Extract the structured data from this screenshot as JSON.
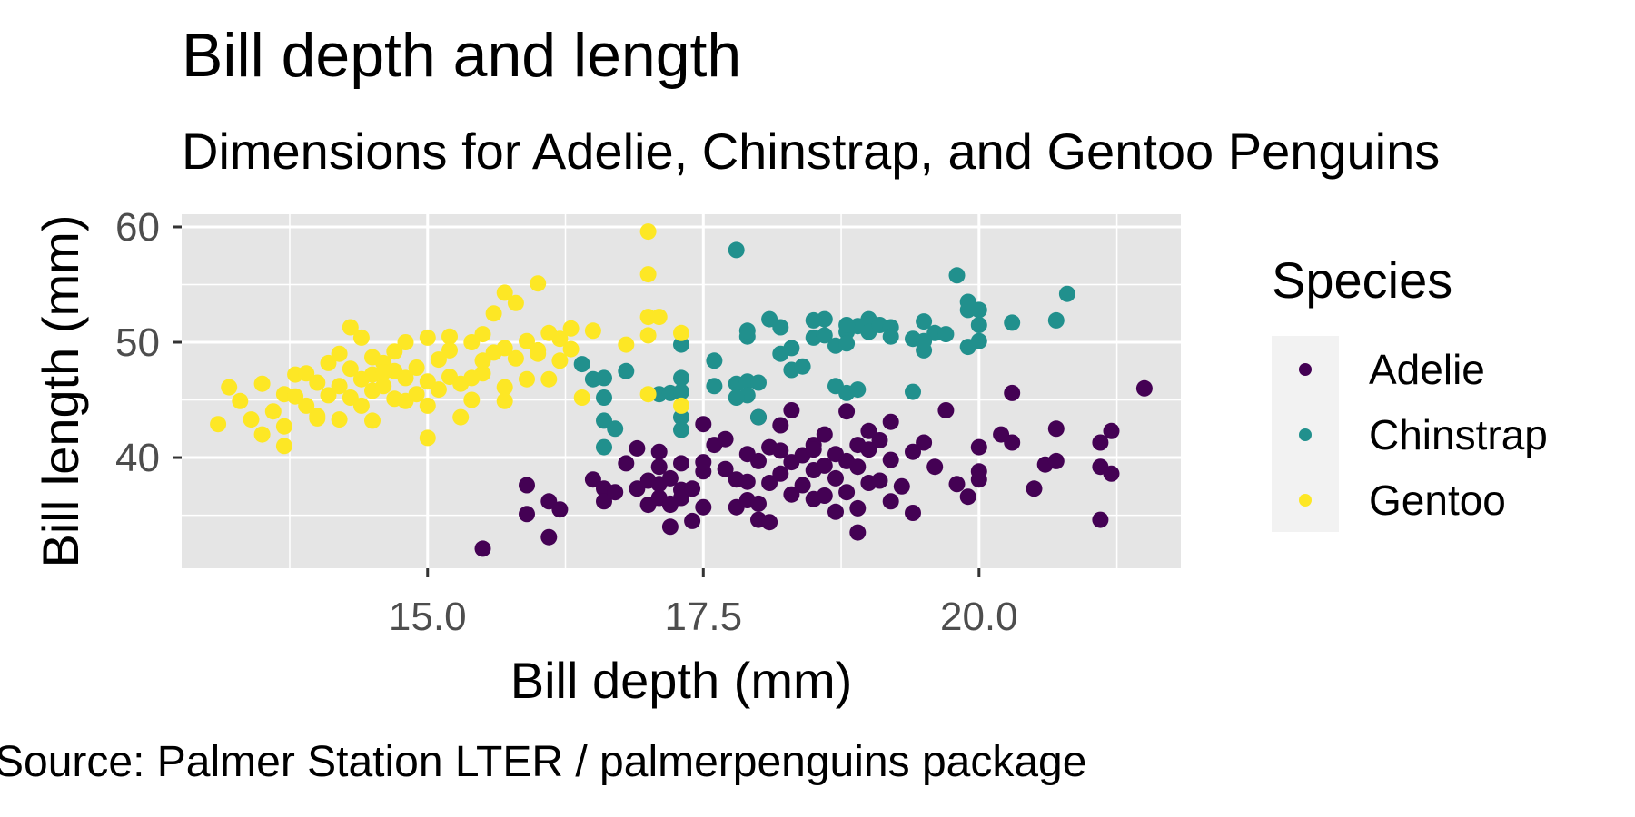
{
  "chart_data": {
    "type": "scatter",
    "title": "Bill depth and length",
    "subtitle": "Dimensions for Adelie, Chinstrap, and Gentoo Penguins",
    "caption": "Source: Palmer Station LTER / palmerpenguins package",
    "xlabel": "Bill depth (mm)",
    "ylabel": "Bill length (mm)",
    "xlim": [
      12.77,
      21.83
    ],
    "ylim": [
      30.4,
      61.1
    ],
    "xticks": [
      15.0,
      17.5,
      20.0
    ],
    "xtick_labels": [
      "15.0",
      "17.5",
      "20.0"
    ],
    "yticks": [
      40,
      50,
      60
    ],
    "ytick_labels": [
      "40",
      "50",
      "60"
    ],
    "grid": true,
    "legend": {
      "title": "Species",
      "position": "right"
    },
    "series": [
      {
        "name": "Adelie",
        "color": "#440154",
        "points": [
          [
            15.5,
            32.1
          ],
          [
            15.9,
            37.6
          ],
          [
            15.9,
            35.1
          ],
          [
            16.1,
            36.2
          ],
          [
            16.1,
            33.1
          ],
          [
            16.2,
            35.5
          ],
          [
            16.5,
            38.1
          ],
          [
            16.6,
            37.3
          ],
          [
            16.6,
            36.2
          ],
          [
            16.7,
            37.0
          ],
          [
            16.8,
            39.5
          ],
          [
            16.9,
            40.8
          ],
          [
            16.9,
            37.3
          ],
          [
            17.0,
            35.9
          ],
          [
            17.0,
            38.0
          ],
          [
            17.1,
            39.2
          ],
          [
            17.1,
            37.7
          ],
          [
            17.1,
            36.5
          ],
          [
            17.1,
            40.5
          ],
          [
            17.2,
            34.0
          ],
          [
            17.2,
            38.2
          ],
          [
            17.2,
            36.0
          ],
          [
            17.3,
            37.2
          ],
          [
            17.3,
            39.5
          ],
          [
            17.3,
            36.5
          ],
          [
            17.4,
            34.5
          ],
          [
            17.5,
            38.8
          ],
          [
            17.5,
            35.7
          ],
          [
            17.5,
            39.6
          ],
          [
            17.6,
            41.1
          ],
          [
            17.7,
            39.0
          ],
          [
            17.8,
            38.1
          ],
          [
            17.8,
            35.7
          ],
          [
            17.9,
            36.3
          ],
          [
            17.9,
            37.9
          ],
          [
            17.9,
            40.3
          ],
          [
            18.0,
            36.0
          ],
          [
            18.0,
            39.7
          ],
          [
            18.0,
            34.6
          ],
          [
            18.1,
            37.8
          ],
          [
            18.1,
            40.9
          ],
          [
            18.1,
            34.4
          ],
          [
            18.2,
            40.6
          ],
          [
            18.2,
            38.6
          ],
          [
            18.3,
            39.6
          ],
          [
            18.3,
            36.8
          ],
          [
            18.4,
            37.6
          ],
          [
            18.4,
            40.2
          ],
          [
            18.5,
            36.4
          ],
          [
            18.5,
            41.1
          ],
          [
            18.5,
            38.9
          ],
          [
            18.6,
            42.0
          ],
          [
            18.6,
            36.7
          ],
          [
            18.6,
            39.3
          ],
          [
            18.7,
            35.3
          ],
          [
            18.7,
            40.3
          ],
          [
            18.7,
            38.2
          ],
          [
            18.8,
            39.7
          ],
          [
            18.8,
            37.0
          ],
          [
            18.9,
            41.1
          ],
          [
            18.9,
            35.6
          ],
          [
            18.9,
            39.2
          ],
          [
            18.9,
            33.5
          ],
          [
            19.0,
            37.8
          ],
          [
            19.0,
            40.7
          ],
          [
            19.1,
            38.0
          ],
          [
            19.1,
            41.5
          ],
          [
            19.2,
            36.2
          ],
          [
            19.2,
            39.8
          ],
          [
            19.2,
            43.1
          ],
          [
            19.3,
            37.5
          ],
          [
            19.4,
            35.2
          ],
          [
            19.4,
            40.5
          ],
          [
            19.5,
            41.3
          ],
          [
            19.6,
            39.2
          ],
          [
            19.7,
            44.1
          ],
          [
            19.8,
            37.7
          ],
          [
            19.9,
            36.6
          ],
          [
            20.0,
            40.9
          ],
          [
            20.0,
            38.8
          ],
          [
            20.0,
            38.1
          ],
          [
            20.2,
            42.0
          ],
          [
            20.3,
            41.3
          ],
          [
            20.3,
            45.6
          ],
          [
            20.5,
            37.3
          ],
          [
            20.6,
            39.4
          ],
          [
            20.7,
            39.7
          ],
          [
            20.7,
            42.5
          ],
          [
            21.1,
            41.3
          ],
          [
            21.1,
            39.2
          ],
          [
            21.1,
            34.6
          ],
          [
            21.2,
            42.3
          ],
          [
            21.2,
            38.6
          ],
          [
            21.5,
            46.0
          ],
          [
            17.5,
            42.9
          ],
          [
            18.0,
            43.5
          ],
          [
            18.3,
            44.1
          ],
          [
            17.4,
            37.3
          ],
          [
            17.2,
            35.9
          ],
          [
            18.5,
            40.7
          ],
          [
            18.2,
            42.8
          ],
          [
            17.7,
            41.6
          ],
          [
            18.8,
            44.0
          ],
          [
            19.0,
            42.3
          ]
        ]
      },
      {
        "name": "Chinstrap",
        "color": "#21908d",
        "points": [
          [
            16.4,
            48.1
          ],
          [
            16.5,
            46.8
          ],
          [
            16.6,
            45.2
          ],
          [
            16.6,
            43.2
          ],
          [
            16.6,
            40.9
          ],
          [
            16.7,
            42.5
          ],
          [
            16.6,
            46.9
          ],
          [
            16.8,
            47.5
          ],
          [
            17.1,
            45.5
          ],
          [
            17.2,
            45.6
          ],
          [
            17.3,
            49.8
          ],
          [
            17.3,
            46.9
          ],
          [
            17.3,
            45.7
          ],
          [
            17.3,
            43.5
          ],
          [
            17.3,
            42.4
          ],
          [
            17.6,
            48.4
          ],
          [
            17.6,
            46.2
          ],
          [
            17.8,
            58.0
          ],
          [
            17.8,
            46.4
          ],
          [
            17.9,
            46.6
          ],
          [
            17.9,
            45.4
          ],
          [
            17.9,
            50.5
          ],
          [
            17.9,
            51.0
          ],
          [
            18.0,
            46.5
          ],
          [
            18.1,
            52.0
          ],
          [
            18.2,
            51.3
          ],
          [
            18.3,
            47.6
          ],
          [
            18.3,
            49.5
          ],
          [
            18.4,
            47.9
          ],
          [
            18.5,
            50.4
          ],
          [
            18.6,
            50.6
          ],
          [
            18.7,
            46.2
          ],
          [
            18.7,
            49.7
          ],
          [
            18.8,
            45.6
          ],
          [
            18.8,
            50.9
          ],
          [
            18.8,
            49.9
          ],
          [
            18.9,
            51.4
          ],
          [
            18.9,
            45.9
          ],
          [
            19.0,
            52.0
          ],
          [
            19.0,
            50.9
          ],
          [
            19.1,
            51.5
          ],
          [
            19.2,
            51.3
          ],
          [
            19.4,
            45.7
          ],
          [
            19.4,
            50.3
          ],
          [
            19.5,
            49.3
          ],
          [
            19.5,
            51.8
          ],
          [
            19.6,
            50.8
          ],
          [
            19.7,
            50.7
          ],
          [
            19.8,
            55.8
          ],
          [
            19.9,
            52.8
          ],
          [
            19.9,
            53.5
          ],
          [
            19.9,
            49.6
          ],
          [
            20.0,
            52.8
          ],
          [
            20.0,
            50.1
          ],
          [
            20.0,
            51.5
          ],
          [
            20.3,
            51.7
          ],
          [
            20.7,
            51.9
          ],
          [
            20.8,
            54.2
          ],
          [
            18.0,
            43.5
          ],
          [
            17.8,
            45.2
          ],
          [
            18.6,
            52.0
          ],
          [
            18.2,
            49.0
          ],
          [
            18.5,
            51.9
          ],
          [
            19.2,
            50.5
          ],
          [
            19.5,
            50.1
          ],
          [
            18.8,
            51.5
          ]
        ]
      },
      {
        "name": "Gentoo",
        "color": "#fde725",
        "points": [
          [
            13.1,
            42.9
          ],
          [
            13.2,
            46.1
          ],
          [
            13.3,
            44.9
          ],
          [
            13.4,
            43.3
          ],
          [
            13.5,
            42.0
          ],
          [
            13.5,
            46.4
          ],
          [
            13.6,
            44.0
          ],
          [
            13.7,
            42.7
          ],
          [
            13.7,
            45.5
          ],
          [
            13.7,
            41.0
          ],
          [
            13.8,
            47.2
          ],
          [
            13.8,
            45.3
          ],
          [
            13.9,
            44.5
          ],
          [
            14.0,
            46.5
          ],
          [
            14.0,
            43.6
          ],
          [
            14.1,
            45.4
          ],
          [
            14.1,
            48.2
          ],
          [
            14.2,
            43.3
          ],
          [
            14.2,
            46.2
          ],
          [
            14.2,
            49.0
          ],
          [
            14.3,
            47.7
          ],
          [
            14.3,
            51.3
          ],
          [
            14.4,
            50.4
          ],
          [
            14.4,
            46.8
          ],
          [
            14.4,
            44.5
          ],
          [
            14.5,
            47.2
          ],
          [
            14.5,
            45.8
          ],
          [
            14.5,
            48.7
          ],
          [
            14.5,
            43.2
          ],
          [
            14.6,
            46.2
          ],
          [
            14.6,
            48.2
          ],
          [
            14.7,
            45.1
          ],
          [
            14.7,
            47.5
          ],
          [
            14.8,
            44.9
          ],
          [
            14.8,
            46.9
          ],
          [
            14.9,
            45.5
          ],
          [
            14.9,
            47.8
          ],
          [
            15.0,
            41.7
          ],
          [
            15.0,
            44.5
          ],
          [
            15.0,
            50.4
          ],
          [
            15.0,
            46.6
          ],
          [
            15.1,
            48.5
          ],
          [
            15.1,
            45.9
          ],
          [
            15.2,
            49.3
          ],
          [
            15.2,
            47.0
          ],
          [
            15.3,
            46.4
          ],
          [
            15.3,
            43.5
          ],
          [
            15.4,
            50.0
          ],
          [
            15.4,
            45.0
          ],
          [
            15.5,
            50.7
          ],
          [
            15.5,
            47.3
          ],
          [
            15.6,
            52.5
          ],
          [
            15.6,
            49.1
          ],
          [
            15.7,
            54.3
          ],
          [
            15.7,
            46.1
          ],
          [
            15.7,
            44.9
          ],
          [
            15.8,
            53.4
          ],
          [
            15.8,
            48.6
          ],
          [
            15.9,
            50.1
          ],
          [
            16.0,
            55.1
          ],
          [
            16.0,
            49.0
          ],
          [
            16.1,
            50.8
          ],
          [
            16.1,
            46.8
          ],
          [
            16.2,
            48.4
          ],
          [
            16.2,
            50.3
          ],
          [
            16.3,
            49.4
          ],
          [
            16.3,
            51.2
          ],
          [
            16.4,
            45.2
          ],
          [
            16.5,
            51.0
          ],
          [
            16.8,
            49.8
          ],
          [
            17.0,
            59.6
          ],
          [
            17.0,
            55.9
          ],
          [
            17.0,
            52.2
          ],
          [
            17.1,
            52.2
          ],
          [
            17.0,
            50.6
          ],
          [
            17.3,
            50.8
          ],
          [
            17.3,
            44.5
          ],
          [
            17.0,
            45.5
          ],
          [
            15.2,
            50.5
          ],
          [
            14.8,
            50.0
          ],
          [
            15.7,
            49.5
          ],
          [
            16.0,
            49.3
          ],
          [
            15.5,
            48.4
          ],
          [
            14.6,
            47.4
          ],
          [
            15.4,
            46.9
          ],
          [
            14.3,
            45.2
          ],
          [
            13.9,
            47.3
          ],
          [
            14.0,
            43.4
          ],
          [
            15.9,
            46.8
          ],
          [
            14.7,
            49.2
          ]
        ]
      }
    ]
  }
}
